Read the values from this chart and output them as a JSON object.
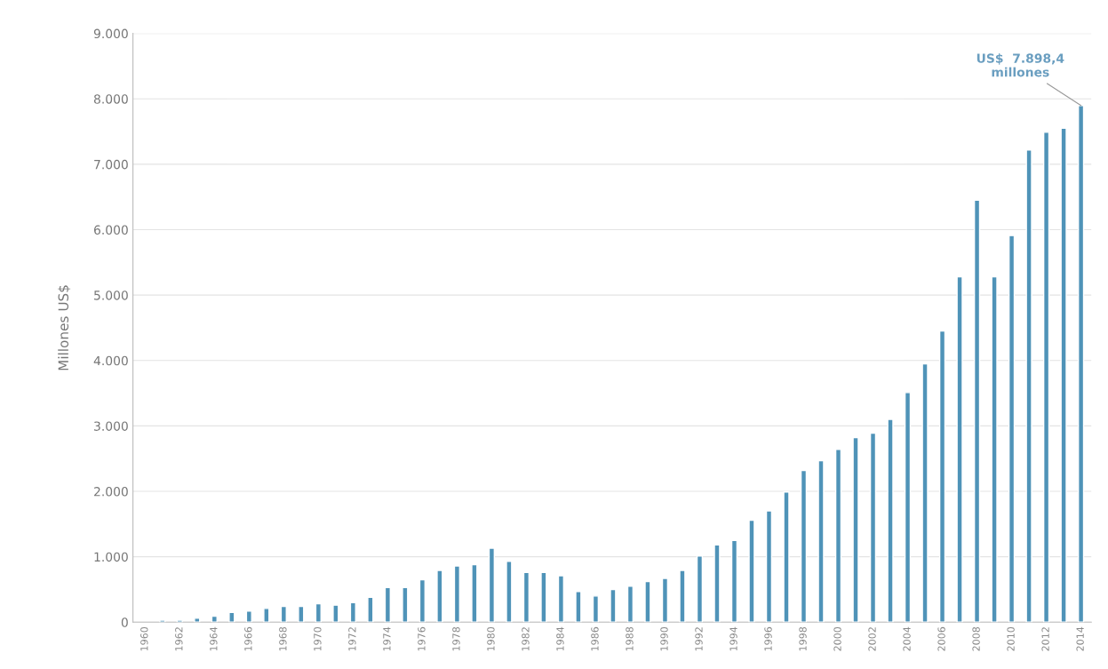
{
  "chart_data": {
    "type": "bar",
    "ylabel": "Millones US$",
    "categories": [
      "1960",
      null,
      "1962",
      null,
      "1964",
      null,
      "1966",
      null,
      "1968",
      null,
      "1970",
      null,
      "1972",
      null,
      "1974",
      null,
      "1976",
      null,
      "1978",
      null,
      "1980",
      null,
      "1982",
      null,
      "1984",
      null,
      "1986",
      null,
      "1988",
      null,
      "1990",
      null,
      "1992",
      null,
      "1994",
      null,
      "1996",
      null,
      "1998",
      null,
      "2000",
      null,
      "2002",
      null,
      "2004",
      null,
      "2006",
      null,
      "2008",
      null,
      "2010",
      null,
      "2012",
      null,
      "2014"
    ],
    "values": [
      null,
      30,
      30,
      60,
      90,
      150,
      170,
      210,
      240,
      240,
      280,
      260,
      300,
      380,
      530,
      530,
      650,
      790,
      860,
      880,
      1130,
      930,
      760,
      760,
      710,
      470,
      400,
      500,
      550,
      620,
      670,
      790,
      1010,
      1180,
      1250,
      1560,
      1700,
      1990,
      2320,
      2470,
      2640,
      2820,
      2890,
      3100,
      3510,
      3950,
      4450,
      5280,
      6450,
      5280,
      5910,
      7220,
      7490,
      7550,
      7898.4
    ],
    "color": "#4f93b8",
    "ylim": [
      0,
      9000
    ],
    "yticks": [
      {
        "value": 0,
        "label": "0"
      },
      {
        "value": 1000,
        "label": "1.000"
      },
      {
        "value": 2000,
        "label": "2.000"
      },
      {
        "value": 3000,
        "label": "3.000"
      },
      {
        "value": 4000,
        "label": "4.000"
      },
      {
        "value": 5000,
        "label": "5.000"
      },
      {
        "value": 6000,
        "label": "6.000"
      },
      {
        "value": 7000,
        "label": "7.000"
      },
      {
        "value": 8000,
        "label": "8.000"
      },
      {
        "value": 9000,
        "label": "9.000"
      }
    ],
    "grid": "y",
    "annotations": [
      {
        "text": "US$  7.898,4\nmillones",
        "x": "2014",
        "y": 7898.4
      }
    ]
  }
}
